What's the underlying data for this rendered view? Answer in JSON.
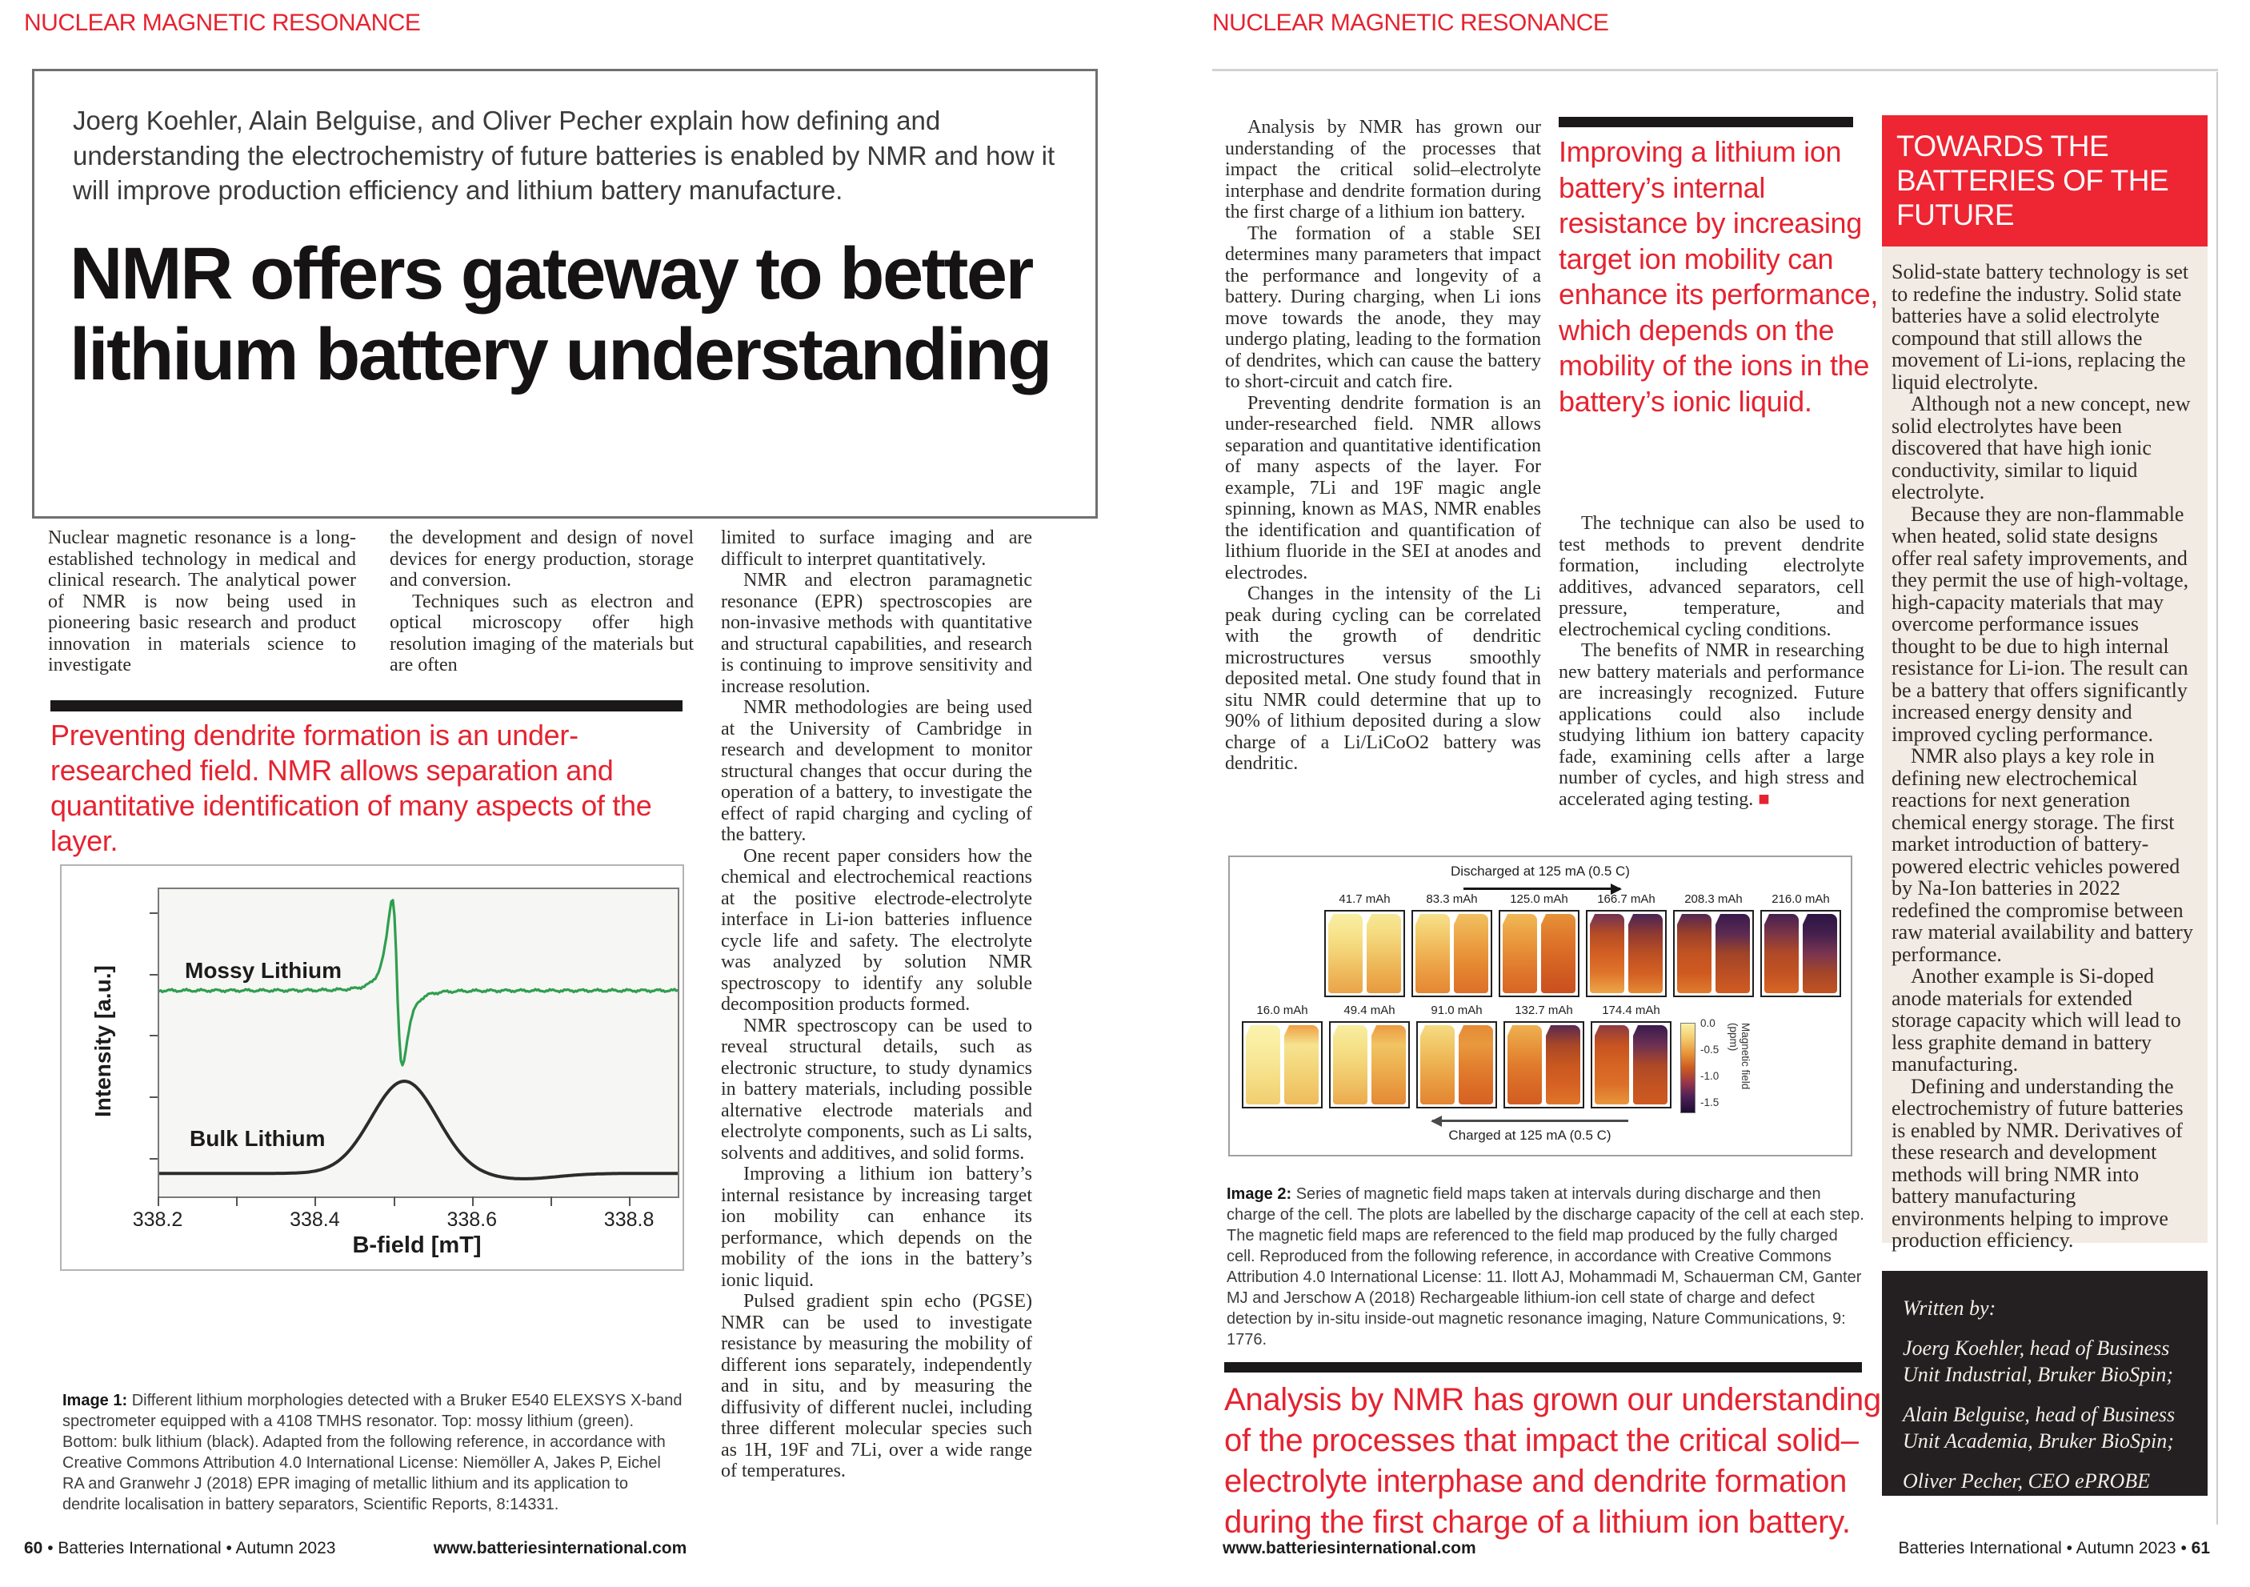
{
  "colors": {
    "accent_red": "#e52330",
    "sidebar_red": "#ee2533",
    "beige": "#f2ebe3",
    "dark_box": "#241f20",
    "chart_green": "#2f9e4f",
    "chart_black": "#2e2c2b"
  },
  "left": {
    "kicker": "NUCLEAR MAGNETIC RESONANCE",
    "standfirst": "Joerg Koehler, Alain Belguise, and Oliver Pecher explain how defining and understanding the electrochemistry of future batteries is enabled by NMR and how it will improve production efficiency and lithium battery manufacture.",
    "headline": "NMR offers gateway to better lithium battery understanding",
    "col1": [
      "Nuclear magnetic resonance is a long-established technology in medical and clinical research. The analytical power of NMR is now being used in pioneering basic research and product innovation in materials science to investigate"
    ],
    "col2": [
      "the development and design of novel devices for energy production, storage and conversion.",
      "Techniques such as electron and optical microscopy offer high resolution imaging of the materials but are often"
    ],
    "col3": [
      "limited to surface imaging and are difficult to interpret quantitatively.",
      "NMR and electron paramagnetic resonance (EPR) spectroscopies are non-invasive methods with quantitative and structural capabilities, and research is continuing to improve sensitivity and increase resolution.",
      "NMR methodologies are being used at the University of Cambridge in research and development to monitor structural changes that occur during the operation of a battery, to investigate the effect of rapid charging and cycling of the battery.",
      "One recent paper considers how the chemical and electrochemical reactions at the positive electrode-electrolyte interface in Li-ion batteries influence cycle life and safety. The electrolyte was analyzed by solution NMR spectroscopy to identify any soluble decomposition products formed.",
      "NMR spectroscopy can be used to reveal structural details, such as electronic structure, to study dynamics in battery materials, including possible alternative electrode materials and electrolyte components, such as Li salts, solvents and additives, and solid forms.",
      "Improving a lithium ion battery’s internal resistance by increasing target ion mobility can enhance its performance, which depends on the mobility of the ions in the battery’s ionic liquid.",
      "Pulsed gradient spin echo (PGSE) NMR can be used to investigate resistance by measuring the mobility of different ions separately, independently and in situ, and by measuring the diffusivity of different nuclei, including three different molecular species such as 1H, 19F and 7Li, over a wide range of temperatures."
    ],
    "pullquote": "Preventing dendrite formation is an under-researched field. NMR allows separation and quantitative identification of many aspects of the layer.",
    "caption_label": "Image 1:",
    "caption_text": "Different lithium morphologies detected with a Bruker E540 ELEXSYS X-band spectrometer equipped with a 4108 TMHS resonator. Top: mossy lithium (green). Bottom: bulk lithium (black). Adapted from the following reference, in accordance with Creative Commons Attribution 4.0 International License: Niemöller A, Jakes P, Eichel RA and Granwehr J (2018) EPR imaging of metallic lithium and its application to dendrite localisation in battery separators, Scientific Reports, 8:14331."
  },
  "right": {
    "kicker": "NUCLEAR MAGNETIC RESONANCE",
    "col1": [
      "Analysis by NMR has grown our understanding of the processes that impact the critical solid–electrolyte interphase and dendrite formation during the first charge of a lithium ion battery.",
      "The formation of a stable SEI determines many parameters that impact the performance and longevity of a battery. During charging, when Li ions move towards the anode, they may undergo plating, leading to the formation of dendrites, which can cause the battery to short-circuit and catch fire.",
      "Preventing dendrite formation is an under-researched field. NMR allows separation and quantitative identification of many aspects of the layer. For example, 7Li and 19F magic angle spinning, known as MAS, NMR enables the identification and quantification of lithium fluoride in the SEI at anodes and electrodes.",
      "Changes in the intensity of the Li peak during cycling can be correlated with the growth of dendritic microstructures versus smoothly deposited metal. One study found that in situ NMR could determine that up to 90% of lithium deposited during a slow charge of a Li/LiCoO2 battery was dendritic."
    ],
    "pullquote": "Improving a lithium ion battery’s internal resistance by increasing target ion mobility can enhance its performance, which depends on the mobility of the ions in the battery’s ionic liquid.",
    "col2": [
      "The technique can also be used to test methods to prevent dendrite formation, including electrolyte additives, advanced separators, cell pressure, temperature, and electrochemical cycling conditions.",
      "The benefits of NMR in researching new battery materials and performance are increasingly recognized. Future applications could also include studying lithium ion battery capacity fade, examining cells after a large number of cycles, and high stress and accelerated aging testing."
    ],
    "end_mark": "■",
    "sidebar_title": "TOWARDS THE BATTERIES OF THE FUTURE",
    "sidebar": [
      "Solid-state battery technology is set to redefine the industry. Solid state batteries have a solid electrolyte compound that still allows the movement of Li-ions, replacing the liquid electrolyte.",
      "Although not a new concept, new solid electrolytes have been discovered that have high ionic conductivity, similar to liquid electrolyte.",
      "Because they are non-flammable when heated, solid state designs offer real safety improvements, and they permit the use of high-voltage, high-capacity materials that may overcome performance issues thought to be due to high internal resistance for Li-ion. The result can be a battery that offers significantly increased energy density and improved cycling performance.",
      "NMR also plays a key role in defining new electrochemical reactions for next generation chemical energy storage. The first market introduction of battery-powered electric vehicles powered by Na-Ion batteries in 2022 redefined the compromise between raw material availability and battery performance.",
      "Another example is Si-doped anode materials for extended storage capacity which will lead to less graphite demand in battery manufacturing.",
      "Defining and understanding the electrochemistry of future batteries is enabled by NMR. Derivatives of these research and development methods will bring NMR into battery manufacturing environments helping to improve production efficiency."
    ],
    "written_by": "Written by:",
    "authors": [
      "Joerg Koehler, head of Business Unit Industrial, Bruker BioSpin;",
      "Alain Belguise, head of Business Unit Academia, Bruker BioSpin;",
      "Oliver Pecher, CEO ePROBE"
    ],
    "caption_label": "Image 2:",
    "caption_text": "Series of magnetic field maps taken at intervals during discharge and then charge of the cell. The plots are labelled by the discharge capacity of the cell at each step. The magnetic field maps are referenced to the field map produced by the fully charged cell. Reproduced from the following reference, in accordance with Creative Commons Attribution 4.0 International License: 11.  Ilott AJ, Mohammadi M, Schauerman CM, Ganter MJ and Jerschow A (2018) Rechargeable lithium-ion cell state of charge and defect detection by in-situ inside-out magnetic resonance imaging, Nature Communications, 9: 1776.",
    "bottom_pullquote": "Analysis by NMR has grown our understanding of the processes that impact the critical solid–electrolyte interphase and dendrite formation during the first charge of a lithium ion battery."
  },
  "chart_data": [
    {
      "type": "line",
      "title": "",
      "xlabel": "B-field [mT]",
      "ylabel": "Intensity [a.u.]",
      "xlim": [
        338.2,
        338.86
      ],
      "xticks": [
        338.2,
        338.3,
        338.4,
        338.5,
        338.6,
        338.7,
        338.8
      ],
      "xtick_labels": [
        "338.2",
        "338.4",
        "338.6",
        "338.8"
      ],
      "grid": false,
      "legend_position": "inside",
      "series": [
        {
          "name": "Mossy Lithium",
          "color": "#2f9e4f",
          "shape": "epr_derivative",
          "center": 338.503,
          "width": 0.011,
          "baseline": 0.33,
          "amp_up": 0.3,
          "amp_down": 0.245,
          "noise": 0.005
        },
        {
          "name": "Bulk Lithium",
          "color": "#2e2c2b",
          "shape": "gaussian",
          "center": 338.512,
          "sigma": 0.042,
          "baseline": 0.925,
          "amp": 0.3,
          "dip_center": 338.66,
          "dip_amp": 0.018,
          "dip_sigma": 0.045
        }
      ]
    },
    {
      "type": "heatmap",
      "title": "Magnetic field maps during discharge and charge",
      "discharge_label": "Discharged at 125 mA (0.5 C)",
      "charge_label": "Charged at 125 mA (0.5 C)",
      "categories_discharge": [
        "41.7 mAh",
        "83.3 mAh",
        "125.0 mAh",
        "166.7 mAh",
        "208.3 mAh",
        "216.0 mAh"
      ],
      "categories_charge": [
        "16.0 mAh",
        "49.4 mAh",
        "91.0 mAh",
        "132.7 mAh",
        "174.4 mAh"
      ],
      "colorbar_label": "Magnetic field (ppm)",
      "colorbar_ticks": [
        "0.0",
        "-0.5",
        "-1.0",
        "-1.5"
      ],
      "colorbar_range": [
        0.0,
        -1.5
      ]
    }
  ],
  "image2": {
    "row1": [
      {
        "label": "41.7 mAh",
        "l": [
          "#f9efa3",
          "#f7e38c",
          "#f3d174",
          "#eeb95c",
          "#eaa449"
        ],
        "r": [
          "#f7e896",
          "#f5da7f",
          "#f0c566",
          "#ecae50",
          "#e79a3f"
        ]
      },
      {
        "label": "83.3 mAh",
        "l": [
          "#f7e18a",
          "#f3cb6d",
          "#efb254",
          "#ea9a40",
          "#e58734"
        ],
        "r": [
          "#f1c161",
          "#edaa4b",
          "#e8943a",
          "#e2802e",
          "#dd7029"
        ]
      },
      {
        "label": "125.0 mAh",
        "l": [
          "#f0b955",
          "#eba143",
          "#e58a35",
          "#de752b",
          "#d86625"
        ],
        "r": [
          "#e79238",
          "#e07c2d",
          "#d96a26",
          "#d15c22",
          "#ca4f1f"
        ]
      },
      {
        "label": "166.7 mAh",
        "l": [
          "#703153",
          "#b54c26",
          "#d35f23",
          "#de752b",
          "#eda74a"
        ],
        "r": [
          "#4a2355",
          "#8f3a32",
          "#bb4f24",
          "#d35f23",
          "#e58a35"
        ]
      },
      {
        "label": "208.3 mAh",
        "l": [
          "#532750",
          "#9c4129",
          "#c25322",
          "#cf5a21",
          "#e07c2d"
        ],
        "r": [
          "#371a4b",
          "#5b2a52",
          "#a04428",
          "#bb4f24",
          "#d15c22"
        ]
      },
      {
        "label": "216.0 mAh",
        "l": [
          "#44204e",
          "#7c3547",
          "#b04a26",
          "#c25322",
          "#d86625"
        ],
        "r": [
          "#2c1342",
          "#44204e",
          "#793550",
          "#a54628",
          "#c25322"
        ]
      }
    ],
    "row2": [
      {
        "label": "16.0 mAh",
        "l": [
          "#faf3ae",
          "#f9eda0",
          "#f7e592",
          "#f4da80",
          "#f1cd70"
        ],
        "r": [
          "#ef9f43",
          "#f6e390",
          "#f4d77d",
          "#f1ca6c",
          "#eebb5c"
        ]
      },
      {
        "label": "49.4 mAh",
        "l": [
          "#f8eda0",
          "#f6e28a",
          "#f3d376",
          "#efc063",
          "#ebaa4c"
        ],
        "r": [
          "#ec9b41",
          "#f0c464",
          "#edb251",
          "#e99d42",
          "#e48937"
        ]
      },
      {
        "label": "91.0 mAh",
        "l": [
          "#f5dc82",
          "#f1c767",
          "#edb050",
          "#e8993e",
          "#e38532"
        ],
        "r": [
          "#e58b36",
          "#e8993e",
          "#e2812f",
          "#dc6f28",
          "#d66123"
        ]
      },
      {
        "label": "132.7 mAh",
        "l": [
          "#eeb152",
          "#e8963c",
          "#e07c2d",
          "#d96a26",
          "#d25d22"
        ],
        "r": [
          "#592951",
          "#a94727",
          "#c85720",
          "#d66123",
          "#df7629"
        ]
      },
      {
        "label": "174.4 mAh",
        "l": [
          "#8d3a41",
          "#c75320",
          "#d56423",
          "#dc6f28",
          "#e8963c"
        ],
        "r": [
          "#391b4c",
          "#6c3054",
          "#ad4827",
          "#c25322",
          "#cf5a21"
        ]
      }
    ],
    "colorbar_colors": [
      "#faf2a6",
      "#f3cb6d",
      "#e8953a",
      "#cd5a20",
      "#97354b",
      "#4a1f57",
      "#1c0c31"
    ]
  },
  "footer": {
    "left_num": "60",
    "left_rest": " • Batteries International • Autumn 2023",
    "site": "www.batteriesinternational.com",
    "right_pub": "Batteries International • Autumn 2023 • ",
    "right_num": "61"
  }
}
